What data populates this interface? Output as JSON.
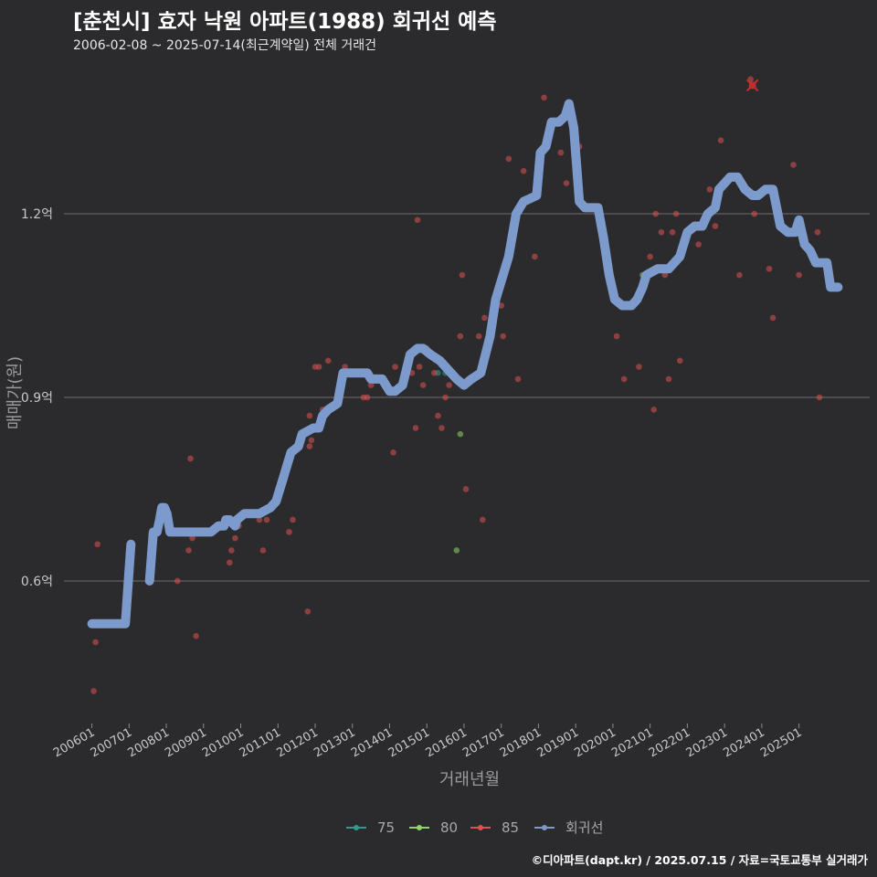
{
  "title": "[춘천시] 효자 낙원 아파트(1988) 회귀선 예측",
  "subtitle": "2006-02-08 ~ 2025-07-14(최근계약일) 전체 거래건",
  "caption": "©디아파트(dapt.kr) / 2025.07.15 / 자료=국토교통부 실거래가",
  "chart_data": {
    "type": "scatter",
    "title": "[춘천시] 효자 낙원 아파트(1988) 회귀선 예측",
    "xlabel": "거래년월",
    "ylabel": "매매가(원)",
    "ylim": [
      0.37,
      1.43
    ],
    "y_ticks": [
      {
        "value": 0.6,
        "label": "0.6억"
      },
      {
        "value": 0.9,
        "label": "0.9억"
      },
      {
        "value": 1.2,
        "label": "1.2억"
      }
    ],
    "x_ticks": [
      "200601",
      "200701",
      "200801",
      "200901",
      "201001",
      "201101",
      "201201",
      "201301",
      "201401",
      "201501",
      "201601",
      "201701",
      "201801",
      "201901",
      "202001",
      "202101",
      "202201",
      "202301",
      "202401",
      "202501"
    ],
    "x_start_year": 2006,
    "x_range": [
      2005.25,
      2026.9
    ],
    "grid": true,
    "legend_position": "bottom",
    "legend": [
      {
        "name": "75",
        "color": "#2a9d8f"
      },
      {
        "name": "80",
        "color": "#8fd36a"
      },
      {
        "name": "85",
        "color": "#e05050"
      },
      {
        "name": "회귀선",
        "color": "#7c9acb"
      }
    ],
    "series": [
      {
        "name": "75",
        "color": "#2a9d8f",
        "points": [
          [
            2015.3,
            0.94
          ],
          [
            2015.5,
            0.94
          ]
        ]
      },
      {
        "name": "80",
        "color": "#8fd36a",
        "points": [
          [
            2015.8,
            0.65
          ],
          [
            2015.9,
            0.84
          ],
          [
            2020.8,
            1.1
          ]
        ]
      },
      {
        "name": "85",
        "color": "#e05050",
        "points": [
          [
            2006.05,
            0.42
          ],
          [
            2006.1,
            0.5
          ],
          [
            2006.15,
            0.66
          ],
          [
            2008.3,
            0.6
          ],
          [
            2008.6,
            0.65
          ],
          [
            2008.65,
            0.8
          ],
          [
            2008.7,
            0.67
          ],
          [
            2008.8,
            0.51
          ],
          [
            2009.7,
            0.63
          ],
          [
            2009.75,
            0.65
          ],
          [
            2009.85,
            0.67
          ],
          [
            2009.95,
            0.69
          ],
          [
            2010.5,
            0.7
          ],
          [
            2010.6,
            0.65
          ],
          [
            2010.7,
            0.7
          ],
          [
            2011.3,
            0.68
          ],
          [
            2011.4,
            0.7
          ],
          [
            2011.8,
            0.55
          ],
          [
            2011.85,
            0.82
          ],
          [
            2011.9,
            0.83
          ],
          [
            2011.85,
            0.87
          ],
          [
            2012.0,
            0.95
          ],
          [
            2012.1,
            0.95
          ],
          [
            2012.2,
            0.88
          ],
          [
            2012.35,
            0.96
          ],
          [
            2012.8,
            0.95
          ],
          [
            2013.3,
            0.9
          ],
          [
            2013.4,
            0.9
          ],
          [
            2013.5,
            0.92
          ],
          [
            2014.1,
            0.81
          ],
          [
            2014.15,
            0.95
          ],
          [
            2014.6,
            0.94
          ],
          [
            2014.7,
            0.85
          ],
          [
            2014.75,
            1.19
          ],
          [
            2014.8,
            0.95
          ],
          [
            2014.9,
            0.92
          ],
          [
            2015.0,
            0.98
          ],
          [
            2015.2,
            0.94
          ],
          [
            2015.3,
            0.87
          ],
          [
            2015.4,
            0.85
          ],
          [
            2015.5,
            0.9
          ],
          [
            2015.6,
            0.92
          ],
          [
            2015.9,
            1.0
          ],
          [
            2015.95,
            1.1
          ],
          [
            2016.05,
            0.75
          ],
          [
            2016.4,
            1.0
          ],
          [
            2016.5,
            0.7
          ],
          [
            2016.55,
            1.03
          ],
          [
            2017.0,
            1.05
          ],
          [
            2017.05,
            1.0
          ],
          [
            2017.2,
            1.29
          ],
          [
            2017.45,
            0.93
          ],
          [
            2017.6,
            1.27
          ],
          [
            2017.9,
            1.13
          ],
          [
            2018.15,
            1.39
          ],
          [
            2018.6,
            1.3
          ],
          [
            2018.75,
            1.25
          ],
          [
            2019.1,
            1.31
          ],
          [
            2020.1,
            1.0
          ],
          [
            2020.3,
            0.93
          ],
          [
            2020.7,
            0.95
          ],
          [
            2021.0,
            1.13
          ],
          [
            2021.1,
            0.88
          ],
          [
            2021.15,
            1.2
          ],
          [
            2021.3,
            1.17
          ],
          [
            2021.4,
            1.1
          ],
          [
            2021.5,
            0.93
          ],
          [
            2021.6,
            1.17
          ],
          [
            2021.7,
            1.2
          ],
          [
            2021.8,
            0.96
          ],
          [
            2022.3,
            1.15
          ],
          [
            2022.6,
            1.24
          ],
          [
            2022.75,
            1.18
          ],
          [
            2022.9,
            1.32
          ],
          [
            2023.4,
            1.1
          ],
          [
            2023.7,
            1.42
          ],
          [
            2023.8,
            1.2
          ],
          [
            2024.2,
            1.11
          ],
          [
            2024.3,
            1.03
          ],
          [
            2024.85,
            1.28
          ],
          [
            2025.0,
            1.1
          ],
          [
            2025.2,
            1.15
          ],
          [
            2025.5,
            1.17
          ],
          [
            2025.55,
            0.9
          ]
        ]
      }
    ],
    "outlier": {
      "name": "85",
      "x": 2023.75,
      "y": 1.41,
      "marker": "x"
    },
    "regression_segments": [
      [
        [
          2006.0,
          0.53
        ],
        [
          2006.9,
          0.53
        ],
        [
          2007.05,
          0.66
        ]
      ],
      [
        [
          2007.55,
          0.6
        ],
        [
          2007.65,
          0.68
        ],
        [
          2007.75,
          0.68
        ],
        [
          2007.82,
          0.7
        ],
        [
          2007.88,
          0.72
        ],
        [
          2007.95,
          0.72
        ],
        [
          2008.02,
          0.71
        ],
        [
          2008.1,
          0.68
        ],
        [
          2008.6,
          0.68
        ],
        [
          2009.0,
          0.68
        ],
        [
          2009.2,
          0.68
        ],
        [
          2009.4,
          0.69
        ],
        [
          2009.55,
          0.69
        ],
        [
          2009.6,
          0.7
        ],
        [
          2009.7,
          0.7
        ],
        [
          2009.85,
          0.69
        ],
        [
          2009.9,
          0.7
        ],
        [
          2010.1,
          0.71
        ],
        [
          2010.5,
          0.71
        ],
        [
          2010.8,
          0.72
        ],
        [
          2010.95,
          0.73
        ],
        [
          2011.05,
          0.75
        ],
        [
          2011.15,
          0.77
        ],
        [
          2011.25,
          0.79
        ],
        [
          2011.35,
          0.81
        ],
        [
          2011.55,
          0.82
        ],
        [
          2011.65,
          0.84
        ],
        [
          2011.95,
          0.85
        ],
        [
          2012.1,
          0.85
        ],
        [
          2012.2,
          0.87
        ],
        [
          2012.35,
          0.88
        ],
        [
          2012.6,
          0.89
        ],
        [
          2012.75,
          0.94
        ],
        [
          2012.9,
          0.94
        ],
        [
          2013.1,
          0.94
        ],
        [
          2013.4,
          0.94
        ],
        [
          2013.5,
          0.93
        ],
        [
          2013.8,
          0.93
        ],
        [
          2014.0,
          0.91
        ],
        [
          2014.15,
          0.91
        ],
        [
          2014.35,
          0.92
        ],
        [
          2014.55,
          0.97
        ],
        [
          2014.75,
          0.98
        ],
        [
          2014.9,
          0.98
        ],
        [
          2015.1,
          0.97
        ],
        [
          2015.35,
          0.96
        ],
        [
          2015.5,
          0.95
        ],
        [
          2015.8,
          0.93
        ],
        [
          2016.0,
          0.92
        ],
        [
          2016.2,
          0.93
        ],
        [
          2016.45,
          0.94
        ],
        [
          2016.7,
          1.0
        ],
        [
          2016.85,
          1.06
        ],
        [
          2017.05,
          1.1
        ],
        [
          2017.2,
          1.13
        ],
        [
          2017.4,
          1.2
        ],
        [
          2017.6,
          1.22
        ],
        [
          2017.95,
          1.23
        ],
        [
          2018.05,
          1.3
        ],
        [
          2018.2,
          1.31
        ],
        [
          2018.35,
          1.35
        ],
        [
          2018.55,
          1.35
        ],
        [
          2018.72,
          1.36
        ],
        [
          2018.82,
          1.38
        ],
        [
          2018.95,
          1.34
        ],
        [
          2019.1,
          1.22
        ],
        [
          2019.25,
          1.21
        ],
        [
          2019.6,
          1.21
        ],
        [
          2019.75,
          1.16
        ],
        [
          2019.9,
          1.1
        ],
        [
          2020.05,
          1.06
        ],
        [
          2020.25,
          1.05
        ],
        [
          2020.5,
          1.05
        ],
        [
          2020.65,
          1.06
        ],
        [
          2020.8,
          1.08
        ],
        [
          2020.9,
          1.1
        ],
        [
          2021.2,
          1.11
        ],
        [
          2021.5,
          1.11
        ],
        [
          2021.65,
          1.12
        ],
        [
          2021.8,
          1.13
        ],
        [
          2022.0,
          1.17
        ],
        [
          2022.2,
          1.18
        ],
        [
          2022.4,
          1.18
        ],
        [
          2022.55,
          1.2
        ],
        [
          2022.75,
          1.21
        ],
        [
          2022.85,
          1.24
        ],
        [
          2023.0,
          1.25
        ],
        [
          2023.15,
          1.26
        ],
        [
          2023.35,
          1.26
        ],
        [
          2023.55,
          1.24
        ],
        [
          2023.75,
          1.23
        ],
        [
          2023.9,
          1.23
        ],
        [
          2024.1,
          1.24
        ],
        [
          2024.3,
          1.24
        ],
        [
          2024.5,
          1.18
        ],
        [
          2024.7,
          1.17
        ],
        [
          2024.9,
          1.17
        ],
        [
          2025.0,
          1.19
        ],
        [
          2025.15,
          1.15
        ],
        [
          2025.3,
          1.14
        ],
        [
          2025.45,
          1.12
        ],
        [
          2025.55,
          1.12
        ],
        [
          2025.75,
          1.12
        ],
        [
          2025.85,
          1.08
        ],
        [
          2026.05,
          1.08
        ]
      ]
    ]
  }
}
